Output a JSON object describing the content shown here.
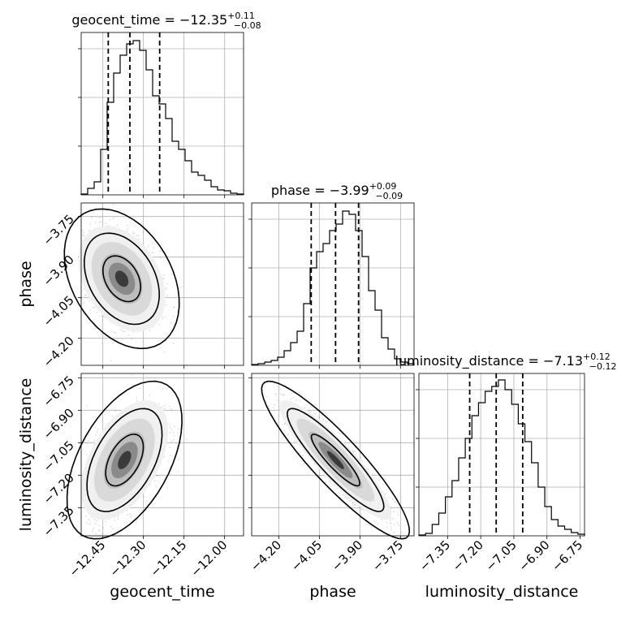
{
  "chart_data": {
    "type": "corner",
    "parameters": [
      {
        "name": "geocent_time",
        "label": "geocent_time",
        "title_prefix": "geocent_time = ",
        "median": "−12.35",
        "plus": "+0.11",
        "minus": "−0.08",
        "range": [
          -12.53,
          -11.93
        ],
        "quantiles": [
          -12.43,
          -12.35,
          -12.24
        ],
        "ticks": [
          -12.45,
          -12.3,
          -12.15,
          -12.0
        ],
        "tick_labels": [
          "−12.45",
          "−12.30",
          "−12.15",
          "−12.00"
        ],
        "hist": [
          0.005,
          0.04,
          0.08,
          0.28,
          0.57,
          0.75,
          0.86,
          0.93,
          0.95,
          0.89,
          0.77,
          0.61,
          0.56,
          0.47,
          0.33,
          0.28,
          0.21,
          0.14,
          0.12,
          0.09,
          0.05,
          0.03,
          0.025,
          0.01,
          0.005
        ]
      },
      {
        "name": "phase",
        "label": "phase",
        "title_prefix": "phase = ",
        "median": "−3.99",
        "plus": "+0.09",
        "minus": "−0.09",
        "range": [
          -4.3,
          -3.7
        ],
        "quantiles": [
          -4.08,
          -3.99,
          -3.905
        ],
        "ticks": [
          -4.2,
          -4.05,
          -3.9,
          -3.75
        ],
        "tick_labels": [
          "−4.20",
          "−4.05",
          "−3.90",
          "−3.75"
        ],
        "hist": [
          0.005,
          0.01,
          0.02,
          0.03,
          0.05,
          0.09,
          0.14,
          0.21,
          0.38,
          0.6,
          0.7,
          0.75,
          0.83,
          0.87,
          0.95,
          0.93,
          0.83,
          0.67,
          0.46,
          0.34,
          0.17,
          0.1,
          0.04,
          0.02,
          0.01
        ]
      },
      {
        "name": "luminosity_distance",
        "label": "luminosity_distance",
        "title_prefix": "luminosity_distance = ",
        "median": "−7.13",
        "plus": "+0.12",
        "minus": "−0.12",
        "range": [
          -7.48,
          -6.73
        ],
        "quantiles": [
          -7.25,
          -7.13,
          -7.01
        ],
        "ticks": [
          -7.35,
          -7.2,
          -7.05,
          -6.9,
          -6.75
        ],
        "tick_labels": [
          "−7.35",
          "−7.20",
          "−7.05",
          "−6.90",
          "−6.75"
        ],
        "hist": [
          0.005,
          0.015,
          0.07,
          0.14,
          0.24,
          0.34,
          0.48,
          0.6,
          0.74,
          0.82,
          0.89,
          0.92,
          0.96,
          0.9,
          0.81,
          0.69,
          0.58,
          0.45,
          0.3,
          0.18,
          0.1,
          0.06,
          0.04,
          0.02,
          0.01
        ]
      }
    ],
    "pairs": [
      {
        "x": "geocent_time",
        "y": "phase",
        "mean": [
          -12.38,
          -3.98
        ],
        "sd": [
          0.07,
          0.085
        ],
        "corr": -0.35
      },
      {
        "x": "geocent_time",
        "y": "luminosity_distance",
        "mean": [
          -12.37,
          -7.13
        ],
        "sd": [
          0.07,
          0.12
        ],
        "corr": 0.5
      },
      {
        "x": "phase",
        "y": "luminosity_distance",
        "mean": [
          -3.99,
          -7.13
        ],
        "sd": [
          0.09,
          0.12
        ],
        "corr": -0.9
      }
    ],
    "grid": true,
    "contour_levels": [
      0.39,
      0.86,
      0.99
    ]
  }
}
